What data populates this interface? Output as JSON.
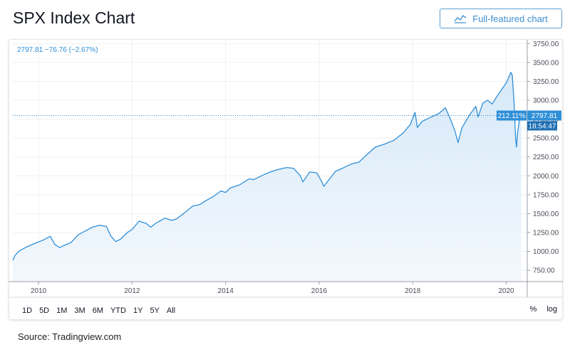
{
  "header": {
    "title": "SPX Index Chart",
    "full_button_label": "Full-featured chart"
  },
  "legend": {
    "price_line": "2797.81  −76.76 (−2.67%)"
  },
  "badges": {
    "percent": "212.11%",
    "price": "2797.81",
    "time": "18:54:47"
  },
  "range_buttons": [
    "1D",
    "5D",
    "1M",
    "3M",
    "6M",
    "YTD",
    "1Y",
    "5Y",
    "All"
  ],
  "options": {
    "percent": "%",
    "log": "log"
  },
  "source": "Source: Tradingview.com",
  "colors": {
    "line": "#2f8fd8",
    "fill_top": "#d6e9f8",
    "fill_bottom": "#f3f8fd",
    "badge": "#2f8fd8",
    "badge_dark": "#1f6fb3",
    "grid": "#eef0f3"
  },
  "chart_data": {
    "type": "area",
    "title": "",
    "xlabel": "",
    "ylabel": "",
    "xlim": [
      2009.45,
      2020.45
    ],
    "ylim": [
      600,
      3800
    ],
    "x_ticks": [
      2010,
      2012,
      2014,
      2016,
      2018,
      2020
    ],
    "x_tick_labels": [
      "2010",
      "2012",
      "2014",
      "2016",
      "2018",
      "2020"
    ],
    "y_ticks": [
      750,
      1000,
      1250,
      1500,
      1750,
      2000,
      2250,
      2500,
      2750,
      3000,
      3250,
      3500,
      3750
    ],
    "y_tick_labels": [
      "750.00",
      "1000.00",
      "1250.00",
      "1500.00",
      "1750.00",
      "2000.00",
      "2250.00",
      "2500.00",
      "2750.00",
      "3000.00",
      "3250.00",
      "3500.00",
      "3750.00"
    ],
    "current_value": 2797.81,
    "series": [
      {
        "x": [
          2009.45,
          2009.5,
          2009.6,
          2009.75,
          2009.9,
          2010.0,
          2010.1,
          2010.25,
          2010.35,
          2010.45,
          2010.55,
          2010.7,
          2010.85,
          2011.0,
          2011.15,
          2011.3,
          2011.45,
          2011.55,
          2011.65,
          2011.75,
          2011.9,
          2012.0,
          2012.15,
          2012.3,
          2012.4,
          2012.5,
          2012.7,
          2012.85,
          2012.95,
          2013.1,
          2013.3,
          2013.45,
          2013.6,
          2013.75,
          2013.9,
          2014.0,
          2014.1,
          2014.3,
          2014.5,
          2014.6,
          2014.8,
          2014.95,
          2015.1,
          2015.3,
          2015.45,
          2015.6,
          2015.65,
          2015.8,
          2015.95,
          2016.05,
          2016.1,
          2016.2,
          2016.35,
          2016.5,
          2016.7,
          2016.85,
          2017.0,
          2017.2,
          2017.4,
          2017.6,
          2017.8,
          2017.95,
          2018.05,
          2018.1,
          2018.2,
          2018.4,
          2018.55,
          2018.7,
          2018.8,
          2018.9,
          2018.97,
          2019.05,
          2019.2,
          2019.35,
          2019.4,
          2019.5,
          2019.6,
          2019.7,
          2019.8,
          2019.9,
          2020.0,
          2020.1,
          2020.13,
          2020.17,
          2020.2,
          2020.22,
          2020.24,
          2020.26,
          2020.3,
          2020.32
        ],
        "y": [
          880,
          950,
          1010,
          1060,
          1100,
          1125,
          1150,
          1200,
          1090,
          1050,
          1080,
          1120,
          1220,
          1270,
          1320,
          1345,
          1330,
          1200,
          1130,
          1160,
          1250,
          1290,
          1400,
          1370,
          1320,
          1370,
          1440,
          1410,
          1430,
          1500,
          1600,
          1620,
          1680,
          1730,
          1800,
          1780,
          1840,
          1880,
          1960,
          1950,
          2010,
          2050,
          2080,
          2110,
          2100,
          2000,
          1920,
          2050,
          2040,
          1930,
          1860,
          1940,
          2060,
          2100,
          2160,
          2180,
          2270,
          2380,
          2420,
          2470,
          2570,
          2680,
          2840,
          2640,
          2720,
          2780,
          2820,
          2900,
          2760,
          2600,
          2440,
          2630,
          2790,
          2920,
          2780,
          2960,
          3000,
          2950,
          3050,
          3140,
          3230,
          3370,
          3330,
          2950,
          2500,
          2380,
          2560,
          2640,
          2830,
          2797.81
        ]
      }
    ]
  }
}
